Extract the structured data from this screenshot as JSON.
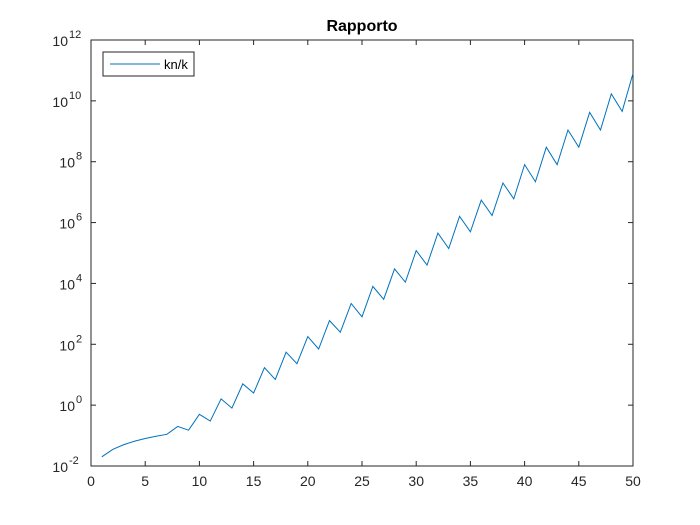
{
  "chart_data": {
    "type": "line",
    "title": "Rapporto",
    "xlabel": "",
    "ylabel": "",
    "xlim": [
      0,
      50
    ],
    "ylim": [
      0.01,
      1000000000000
    ],
    "y_scale": "log",
    "x_ticks": [
      0,
      5,
      10,
      15,
      20,
      25,
      30,
      35,
      40,
      45,
      50
    ],
    "x_tick_labels": [
      "0",
      "5",
      "10",
      "15",
      "20",
      "25",
      "30",
      "35",
      "40",
      "45",
      "50"
    ],
    "y_ticks": [
      0.01,
      1,
      100,
      10000,
      1000000,
      100000000,
      10000000000,
      1000000000000
    ],
    "y_tick_labels": [
      {
        "base": "10",
        "exp": "-2"
      },
      {
        "base": "10",
        "exp": "0"
      },
      {
        "base": "10",
        "exp": "2"
      },
      {
        "base": "10",
        "exp": "4"
      },
      {
        "base": "10",
        "exp": "6"
      },
      {
        "base": "10",
        "exp": "8"
      },
      {
        "base": "10",
        "exp": "10"
      },
      {
        "base": "10",
        "exp": "12"
      }
    ],
    "grid": false,
    "legend_position": "top-left",
    "series": [
      {
        "name": "kn/k",
        "color": "#0072BD",
        "x": [
          1,
          2,
          3,
          4,
          5,
          6,
          7,
          8,
          9,
          10,
          11,
          12,
          13,
          14,
          15,
          16,
          17,
          18,
          19,
          20,
          21,
          22,
          23,
          24,
          25,
          26,
          27,
          28,
          29,
          30,
          31,
          32,
          33,
          34,
          35,
          36,
          37,
          38,
          39,
          40,
          41,
          42,
          43,
          44,
          45,
          46,
          47,
          48,
          49,
          50
        ],
        "y": [
          0.02,
          0.035,
          0.05,
          0.065,
          0.08,
          0.095,
          0.11,
          0.2,
          0.15,
          0.5,
          0.3,
          1.6,
          0.8,
          5,
          2.5,
          17,
          7,
          55,
          23,
          180,
          70,
          600,
          250,
          2200,
          800,
          8000,
          3000,
          30000,
          11000,
          120000,
          40000,
          450000,
          140000,
          1600000,
          500000,
          5500000,
          1700000,
          20000000,
          6000000,
          80000000,
          22000000,
          300000000,
          80000000,
          1100000000,
          300000000,
          4200000000,
          1100000000,
          17000000000,
          4500000000,
          80000000000
        ]
      }
    ]
  }
}
